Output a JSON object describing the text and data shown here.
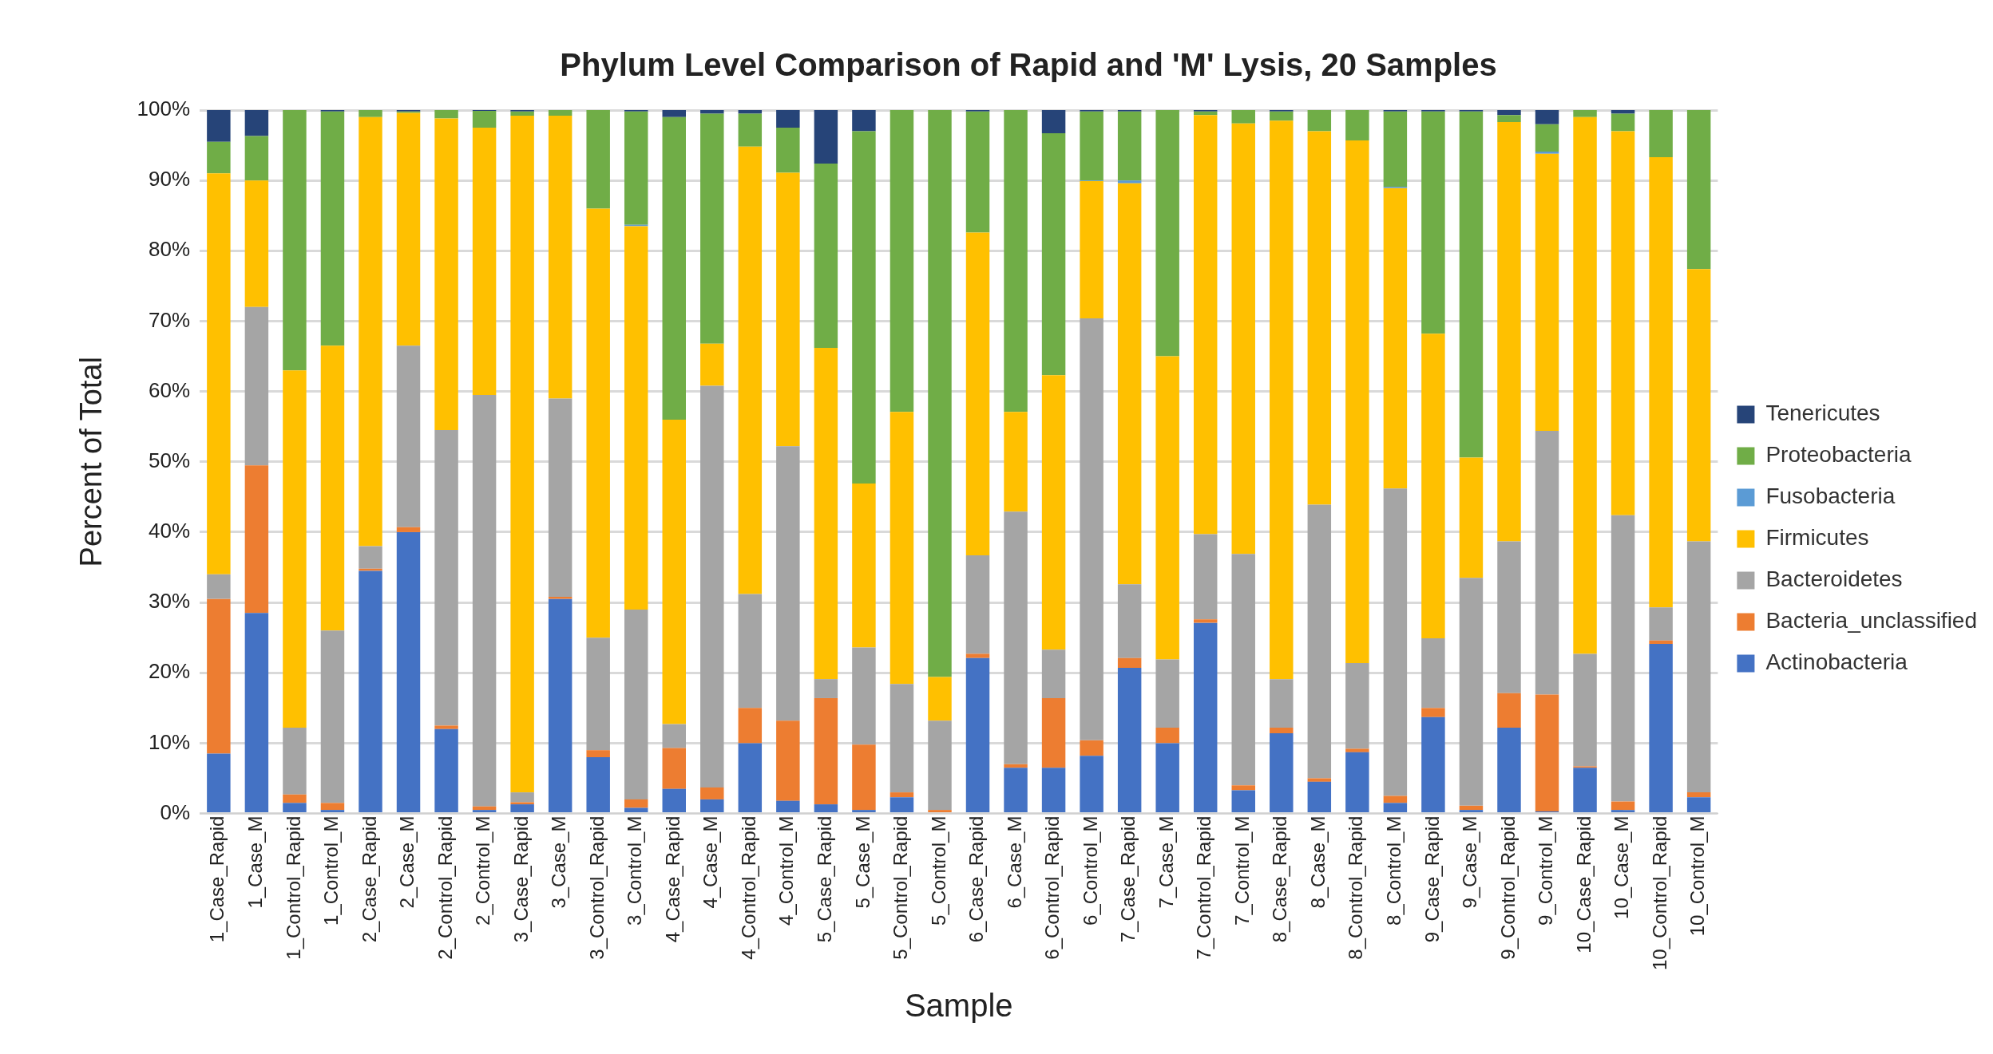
{
  "chart_data": {
    "type": "bar",
    "title": "Phylum Level Comparison of Rapid and 'M' Lysis, 20 Samples",
    "xlabel": "Sample",
    "ylabel": "Percent of Total",
    "stacked": true,
    "grid": "y",
    "legend": "right",
    "ylim": [
      0,
      100
    ],
    "yticks": [
      {
        "value": 0,
        "label": "0%"
      },
      {
        "value": 10,
        "label": "10%"
      },
      {
        "value": 20,
        "label": "20%"
      },
      {
        "value": 30,
        "label": "30%"
      },
      {
        "value": 40,
        "label": "40%"
      },
      {
        "value": 50,
        "label": "50%"
      },
      {
        "value": 60,
        "label": "60%"
      },
      {
        "value": 70,
        "label": "70%"
      },
      {
        "value": 80,
        "label": "80%"
      },
      {
        "value": 90,
        "label": "90%"
      },
      {
        "value": 100,
        "label": "100%"
      }
    ],
    "categories": [
      "1_Case_Rapid",
      "1_Case_M",
      "1_Control_Rapid",
      "1_Control_M",
      "2_Case_Rapid",
      "2_Case_M",
      "2_Control_Rapid",
      "2_Control_M",
      "3_Case_Rapid",
      "3_Case_M",
      "3_Control_Rapid",
      "3_Control_M",
      "4_Case_Rapid",
      "4_Case_M",
      "4_Control_Rapid",
      "4_Control_M",
      "5_Case_Rapid",
      "5_Case_M",
      "5_Control_Rapid",
      "5_Control_M",
      "6_Case_Rapid",
      "6_Case_M",
      "6_Control_Rapid",
      "6_Control_M",
      "7_Case_Rapid",
      "7_Case_M",
      "7_Control_Rapid",
      "7_Control_M",
      "8_Case_Rapid",
      "8_Case_M",
      "8_Control_Rapid",
      "8_Control_M",
      "9_Case_Rapid",
      "9_Case_M",
      "9_Control_Rapid",
      "9_Control_M",
      "10_Case_Rapid",
      "10_Case_M",
      "10_Control_Rapid",
      "10_Control_M"
    ],
    "series": [
      {
        "name": "Actinobacteria",
        "color": "#4472c4",
        "values": [
          8.5,
          28.5,
          1.5,
          0.5,
          34.5,
          40,
          12,
          0.5,
          1.3,
          30.5,
          8,
          0.8,
          3.5,
          2,
          10,
          1.8,
          1.3,
          0.5,
          2.3,
          0,
          22.1,
          6.5,
          6.5,
          8.2,
          20.7,
          10,
          27.1,
          3.3,
          11.4,
          4.5,
          8.7,
          1.5,
          13.7,
          0.5,
          12.2,
          0.3,
          6.5,
          0.5,
          24.1,
          2.3
        ]
      },
      {
        "name": "Bacteria_unclassified",
        "color": "#ed7d31",
        "values": [
          22,
          21,
          1.2,
          1,
          0.3,
          0.7,
          0.5,
          0.5,
          0.3,
          0.3,
          1,
          1.2,
          5.8,
          1.7,
          5,
          11.4,
          15.1,
          9.3,
          0.7,
          0.5,
          0.6,
          0.5,
          9.9,
          2.2,
          1.4,
          2.2,
          0.5,
          0.7,
          0.8,
          0.5,
          0.5,
          1,
          1.3,
          0.6,
          4.9,
          16.6,
          0.2,
          1.2,
          0.5,
          0.7
        ]
      },
      {
        "name": "Bacteroidetes",
        "color": "#a5a5a5",
        "values": [
          3.5,
          22.5,
          9.5,
          24.5,
          3.2,
          25.8,
          42,
          58.5,
          1.4,
          28.2,
          16,
          27,
          3.4,
          57.1,
          16.2,
          39,
          2.7,
          13.8,
          15.4,
          12.7,
          14,
          35.9,
          6.9,
          60,
          10.5,
          9.7,
          12.1,
          32.9,
          6.9,
          38.9,
          12.2,
          43.7,
          9.9,
          32.4,
          21.6,
          37.5,
          16,
          40.7,
          4.7,
          35.7
        ]
      },
      {
        "name": "Firmicutes",
        "color": "#ffc000",
        "values": [
          57,
          18,
          50.8,
          40.5,
          61,
          33.1,
          44.3,
          38,
          96.2,
          40.2,
          61,
          54.5,
          43.3,
          6,
          63.6,
          38.9,
          47.1,
          23.3,
          38.7,
          6.2,
          45.9,
          14.2,
          39,
          19.5,
          57,
          43.1,
          59.6,
          61.2,
          79.4,
          53.1,
          74.3,
          42.7,
          43.3,
          17.1,
          59.6,
          39.4,
          76.3,
          54.6,
          64,
          38.7
        ]
      },
      {
        "name": "Fusobacteria",
        "color": "#5b9bd5",
        "values": [
          0,
          0,
          0,
          0,
          0,
          0,
          0,
          0,
          0,
          0,
          0,
          0.2,
          0,
          0,
          0,
          0,
          0,
          0,
          0,
          0,
          0,
          0,
          0,
          0.1,
          0.4,
          0,
          0,
          0,
          0,
          0,
          0,
          0.2,
          0,
          0,
          0,
          0.3,
          0,
          0,
          0,
          0
        ]
      },
      {
        "name": "Proteobacteria",
        "color": "#70ad47",
        "values": [
          4.5,
          6.3,
          37,
          33.3,
          1,
          0.2,
          1.2,
          2.4,
          0.6,
          0.8,
          14,
          16.1,
          43,
          32.7,
          4.7,
          6.4,
          26.2,
          50.1,
          42.9,
          80.6,
          17.2,
          42.9,
          34.4,
          9.8,
          9.8,
          35,
          0.5,
          1.9,
          1.3,
          3,
          4.3,
          10.7,
          31.6,
          49.2,
          1,
          3.9,
          1,
          2.5,
          6.7,
          22.6
        ]
      },
      {
        "name": "Tenericutes",
        "color": "#264478",
        "values": [
          4.5,
          3.7,
          0,
          0.2,
          0,
          0.2,
          0,
          0.1,
          0.2,
          0,
          0,
          0.2,
          1,
          0.5,
          0.5,
          2.5,
          7.6,
          3,
          0,
          0,
          0.2,
          0,
          3.3,
          0.2,
          0.2,
          0,
          0.2,
          0,
          0.2,
          0,
          0,
          0.2,
          0.2,
          0.2,
          0.7,
          2,
          0,
          0.5,
          0,
          0
        ]
      }
    ]
  }
}
